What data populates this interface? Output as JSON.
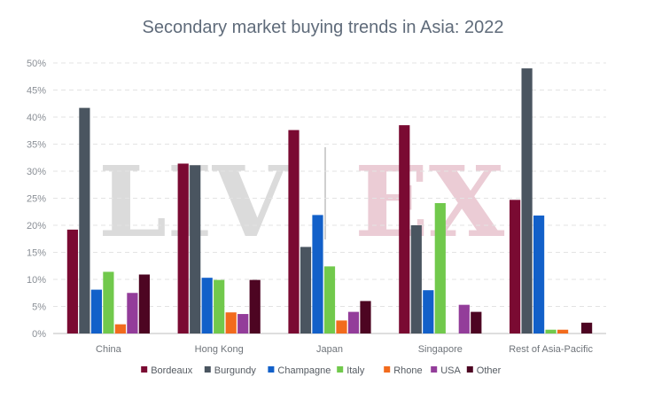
{
  "chart_data": {
    "type": "bar",
    "title": "Secondary market buying trends in Asia: 2022",
    "xlabel": "",
    "ylabel": "",
    "ylim": [
      0,
      50
    ],
    "yticks": [
      "0%",
      "5%",
      "10%",
      "15%",
      "20%",
      "25%",
      "30%",
      "35%",
      "40%",
      "45%",
      "50%"
    ],
    "grid": true,
    "legend_position": "bottom",
    "categories": [
      "China",
      "Hong Kong",
      "Japan",
      "Singapore",
      "Rest of Asia-Pacific"
    ],
    "series": [
      {
        "name": "Bordeaux",
        "color": "#7a0a32",
        "values": [
          19.2,
          31.4,
          37.6,
          38.5,
          24.7
        ]
      },
      {
        "name": "Burgundy",
        "color": "#4a5560",
        "values": [
          41.7,
          31.1,
          16.0,
          20.0,
          49.0
        ]
      },
      {
        "name": "Champagne",
        "color": "#1260c9",
        "values": [
          8.1,
          10.3,
          21.9,
          8.0,
          21.8
        ]
      },
      {
        "name": "Italy",
        "color": "#71c94c",
        "values": [
          11.4,
          9.9,
          12.4,
          24.1,
          0.7
        ]
      },
      {
        "name": "Rhone",
        "color": "#f26b1d",
        "values": [
          1.7,
          3.9,
          2.4,
          0,
          0.7
        ]
      },
      {
        "name": "USA",
        "color": "#933d9a",
        "values": [
          7.5,
          3.6,
          4.0,
          5.3,
          0
        ]
      },
      {
        "name": "Other",
        "color": "#4d0522",
        "values": [
          10.9,
          9.9,
          6.0,
          4.0,
          2.0
        ]
      }
    ],
    "watermark": {
      "left": "LIV",
      "right": "EX"
    }
  }
}
